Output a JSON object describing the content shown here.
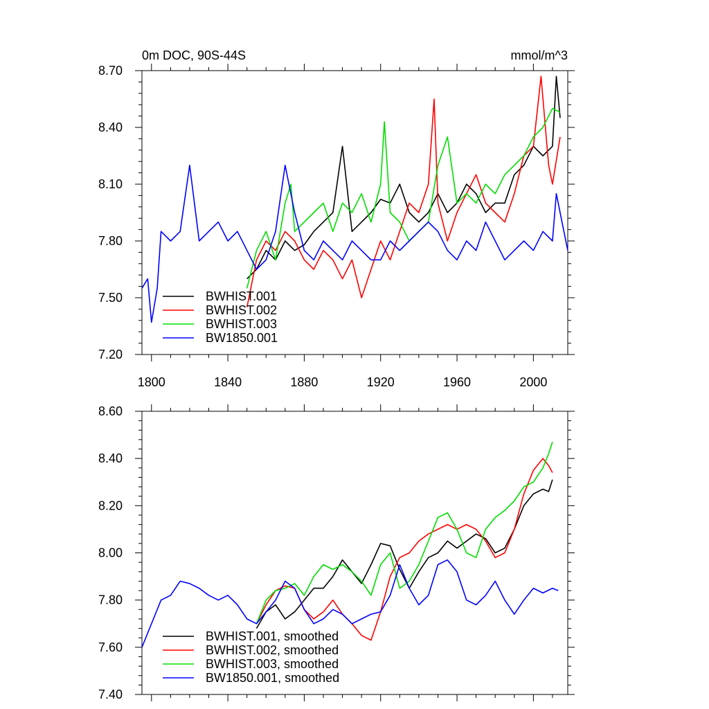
{
  "chart_data": [
    {
      "type": "line",
      "title": "0m DOC, 90S-44S",
      "units": "mmol/m^3",
      "xlim": [
        1795,
        2018
      ],
      "ylim": [
        7.2,
        8.7
      ],
      "xticks": [
        1800,
        1840,
        1880,
        1920,
        1960,
        2000
      ],
      "xtick_labels": [
        "1800",
        "1840",
        "1880",
        "1920",
        "1960",
        "2000"
      ],
      "yticks": [
        7.2,
        7.5,
        7.8,
        8.1,
        8.4,
        8.7
      ],
      "ytick_labels": [
        "7.20",
        "7.50",
        "7.80",
        "8.10",
        "8.40",
        "8.70"
      ],
      "legend": "bottom-left",
      "series": [
        {
          "name": "BWHIST.001",
          "color": "#000000",
          "x": [
            1850,
            1855,
            1860,
            1865,
            1870,
            1875,
            1880,
            1885,
            1890,
            1895,
            1900,
            1905,
            1910,
            1915,
            1920,
            1925,
            1930,
            1935,
            1940,
            1945,
            1950,
            1955,
            1960,
            1965,
            1970,
            1975,
            1980,
            1985,
            1990,
            1995,
            2000,
            2005,
            2010,
            2012,
            2014
          ],
          "values": [
            7.6,
            7.65,
            7.75,
            7.7,
            7.8,
            7.75,
            7.78,
            7.85,
            7.9,
            7.95,
            8.3,
            7.85,
            7.9,
            7.95,
            8.02,
            8.0,
            8.1,
            7.95,
            7.9,
            7.95,
            8.05,
            7.95,
            8.0,
            8.1,
            8.05,
            7.95,
            8.0,
            8.0,
            8.15,
            8.2,
            8.3,
            8.25,
            8.3,
            8.67,
            8.45
          ]
        },
        {
          "name": "BWHIST.002",
          "color": "#ff0000",
          "x": [
            1850,
            1855,
            1860,
            1865,
            1870,
            1875,
            1880,
            1885,
            1890,
            1895,
            1900,
            1905,
            1910,
            1915,
            1920,
            1925,
            1930,
            1935,
            1940,
            1945,
            1948,
            1950,
            1955,
            1960,
            1965,
            1970,
            1975,
            1980,
            1985,
            1990,
            1995,
            2000,
            2004,
            2008,
            2010,
            2014
          ],
          "values": [
            7.45,
            7.7,
            7.8,
            7.75,
            7.85,
            7.8,
            7.7,
            7.65,
            7.75,
            7.7,
            7.6,
            7.7,
            7.5,
            7.65,
            7.8,
            7.7,
            7.85,
            8.0,
            7.95,
            8.1,
            8.55,
            8.0,
            7.8,
            7.95,
            8.05,
            8.15,
            8.0,
            7.95,
            7.9,
            8.05,
            8.25,
            8.3,
            8.67,
            8.2,
            8.1,
            8.35
          ]
        },
        {
          "name": "BWHIST.003",
          "color": "#00dd00",
          "x": [
            1850,
            1855,
            1860,
            1865,
            1870,
            1873,
            1875,
            1880,
            1885,
            1890,
            1895,
            1900,
            1905,
            1910,
            1915,
            1920,
            1922,
            1925,
            1930,
            1935,
            1940,
            1945,
            1950,
            1955,
            1960,
            1965,
            1970,
            1975,
            1980,
            1985,
            1990,
            1995,
            2000,
            2005,
            2010,
            2014
          ],
          "values": [
            7.55,
            7.75,
            7.85,
            7.7,
            8.0,
            8.1,
            7.85,
            7.9,
            7.95,
            8.0,
            7.85,
            8.0,
            7.95,
            8.05,
            7.9,
            8.1,
            8.43,
            7.95,
            7.9,
            7.8,
            7.85,
            7.9,
            8.2,
            8.35,
            8.0,
            8.05,
            8.0,
            8.1,
            8.05,
            8.15,
            8.2,
            8.25,
            8.35,
            8.4,
            8.5,
            8.48
          ]
        },
        {
          "name": "BW1850.001",
          "color": "#0000ff",
          "x": [
            1795,
            1798,
            1800,
            1803,
            1805,
            1810,
            1815,
            1820,
            1825,
            1830,
            1835,
            1840,
            1845,
            1850,
            1855,
            1860,
            1865,
            1870,
            1875,
            1880,
            1885,
            1890,
            1895,
            1900,
            1905,
            1910,
            1915,
            1920,
            1925,
            1930,
            1935,
            1940,
            1945,
            1950,
            1955,
            1960,
            1965,
            1970,
            1975,
            1980,
            1985,
            1990,
            1995,
            2000,
            2005,
            2010,
            2012,
            2015,
            2018
          ],
          "values": [
            7.55,
            7.6,
            7.37,
            7.55,
            7.85,
            7.8,
            7.85,
            8.2,
            7.8,
            7.85,
            7.9,
            7.8,
            7.85,
            7.75,
            7.65,
            7.7,
            7.85,
            8.2,
            7.95,
            7.75,
            7.7,
            7.8,
            7.75,
            7.7,
            7.8,
            7.75,
            7.7,
            7.7,
            7.8,
            7.75,
            7.8,
            7.85,
            7.9,
            7.85,
            7.75,
            7.7,
            7.8,
            7.75,
            7.9,
            7.8,
            7.7,
            7.75,
            7.8,
            7.75,
            7.85,
            7.8,
            8.05,
            7.9,
            7.75
          ]
        }
      ]
    },
    {
      "type": "line",
      "title": "",
      "xlim": [
        1795,
        2018
      ],
      "ylim": [
        7.4,
        8.6
      ],
      "xticks": [
        1800,
        1840,
        1880,
        1920,
        1960,
        2000
      ],
      "yticks": [
        7.4,
        7.6,
        7.8,
        8.0,
        8.2,
        8.4,
        8.6
      ],
      "ytick_labels": [
        "7.40",
        "7.60",
        "7.80",
        "8.00",
        "8.20",
        "8.40",
        "8.60"
      ],
      "legend": "bottom-left",
      "series": [
        {
          "name": "BWHIST.001, smoothed",
          "color": "#000000",
          "x": [
            1855,
            1860,
            1865,
            1870,
            1875,
            1880,
            1885,
            1890,
            1895,
            1900,
            1905,
            1910,
            1915,
            1920,
            1925,
            1930,
            1935,
            1940,
            1945,
            1950,
            1955,
            1960,
            1965,
            1970,
            1975,
            1980,
            1985,
            1990,
            1995,
            2000,
            2005,
            2008,
            2010
          ],
          "values": [
            7.68,
            7.75,
            7.78,
            7.72,
            7.75,
            7.8,
            7.85,
            7.85,
            7.9,
            7.97,
            7.92,
            7.87,
            7.95,
            8.04,
            8.03,
            7.93,
            7.85,
            7.92,
            7.98,
            8.0,
            8.05,
            8.02,
            8.05,
            8.08,
            8.06,
            8.0,
            8.02,
            8.1,
            8.2,
            8.25,
            8.27,
            8.26,
            8.31
          ]
        },
        {
          "name": "BWHIST.002, smoothed",
          "color": "#ff0000",
          "x": [
            1855,
            1860,
            1865,
            1870,
            1875,
            1880,
            1885,
            1890,
            1895,
            1900,
            1905,
            1910,
            1915,
            1920,
            1925,
            1930,
            1935,
            1940,
            1945,
            1950,
            1955,
            1960,
            1965,
            1970,
            1975,
            1980,
            1985,
            1990,
            1995,
            2000,
            2005,
            2008,
            2010
          ],
          "values": [
            7.7,
            7.78,
            7.84,
            7.86,
            7.85,
            7.76,
            7.72,
            7.75,
            7.8,
            7.74,
            7.7,
            7.65,
            7.63,
            7.75,
            7.9,
            7.98,
            8.0,
            8.05,
            8.08,
            8.1,
            8.12,
            8.1,
            8.12,
            8.1,
            8.05,
            7.98,
            8.0,
            8.1,
            8.25,
            8.35,
            8.4,
            8.37,
            8.34
          ]
        },
        {
          "name": "BWHIST.003, smoothed",
          "color": "#00dd00",
          "x": [
            1855,
            1860,
            1865,
            1870,
            1875,
            1880,
            1885,
            1890,
            1895,
            1900,
            1905,
            1910,
            1915,
            1920,
            1925,
            1930,
            1935,
            1940,
            1945,
            1950,
            1955,
            1960,
            1965,
            1970,
            1975,
            1980,
            1985,
            1990,
            1995,
            2000,
            2005,
            2008,
            2010
          ],
          "values": [
            7.7,
            7.8,
            7.84,
            7.85,
            7.87,
            7.82,
            7.9,
            7.95,
            7.93,
            7.95,
            7.92,
            7.88,
            7.82,
            7.95,
            8.0,
            7.85,
            7.88,
            7.95,
            8.05,
            8.15,
            8.17,
            8.1,
            8.0,
            7.98,
            8.1,
            8.15,
            8.18,
            8.22,
            8.28,
            8.3,
            8.36,
            8.42,
            8.47
          ]
        },
        {
          "name": "BW1850.001, smoothed",
          "color": "#0000ff",
          "x": [
            1795,
            1800,
            1805,
            1810,
            1815,
            1820,
            1825,
            1830,
            1835,
            1840,
            1845,
            1850,
            1855,
            1860,
            1865,
            1870,
            1875,
            1880,
            1885,
            1890,
            1895,
            1900,
            1905,
            1910,
            1915,
            1920,
            1925,
            1930,
            1935,
            1940,
            1945,
            1950,
            1955,
            1960,
            1965,
            1970,
            1975,
            1980,
            1985,
            1990,
            1995,
            2000,
            2005,
            2010,
            2013
          ],
          "values": [
            7.6,
            7.7,
            7.8,
            7.82,
            7.88,
            7.87,
            7.85,
            7.82,
            7.8,
            7.82,
            7.78,
            7.72,
            7.7,
            7.75,
            7.8,
            7.88,
            7.85,
            7.76,
            7.7,
            7.72,
            7.76,
            7.74,
            7.7,
            7.72,
            7.74,
            7.75,
            7.82,
            7.95,
            7.85,
            7.78,
            7.82,
            7.95,
            7.97,
            7.92,
            7.8,
            7.78,
            7.82,
            7.88,
            7.8,
            7.74,
            7.8,
            7.85,
            7.83,
            7.85,
            7.84
          ]
        }
      ]
    }
  ]
}
